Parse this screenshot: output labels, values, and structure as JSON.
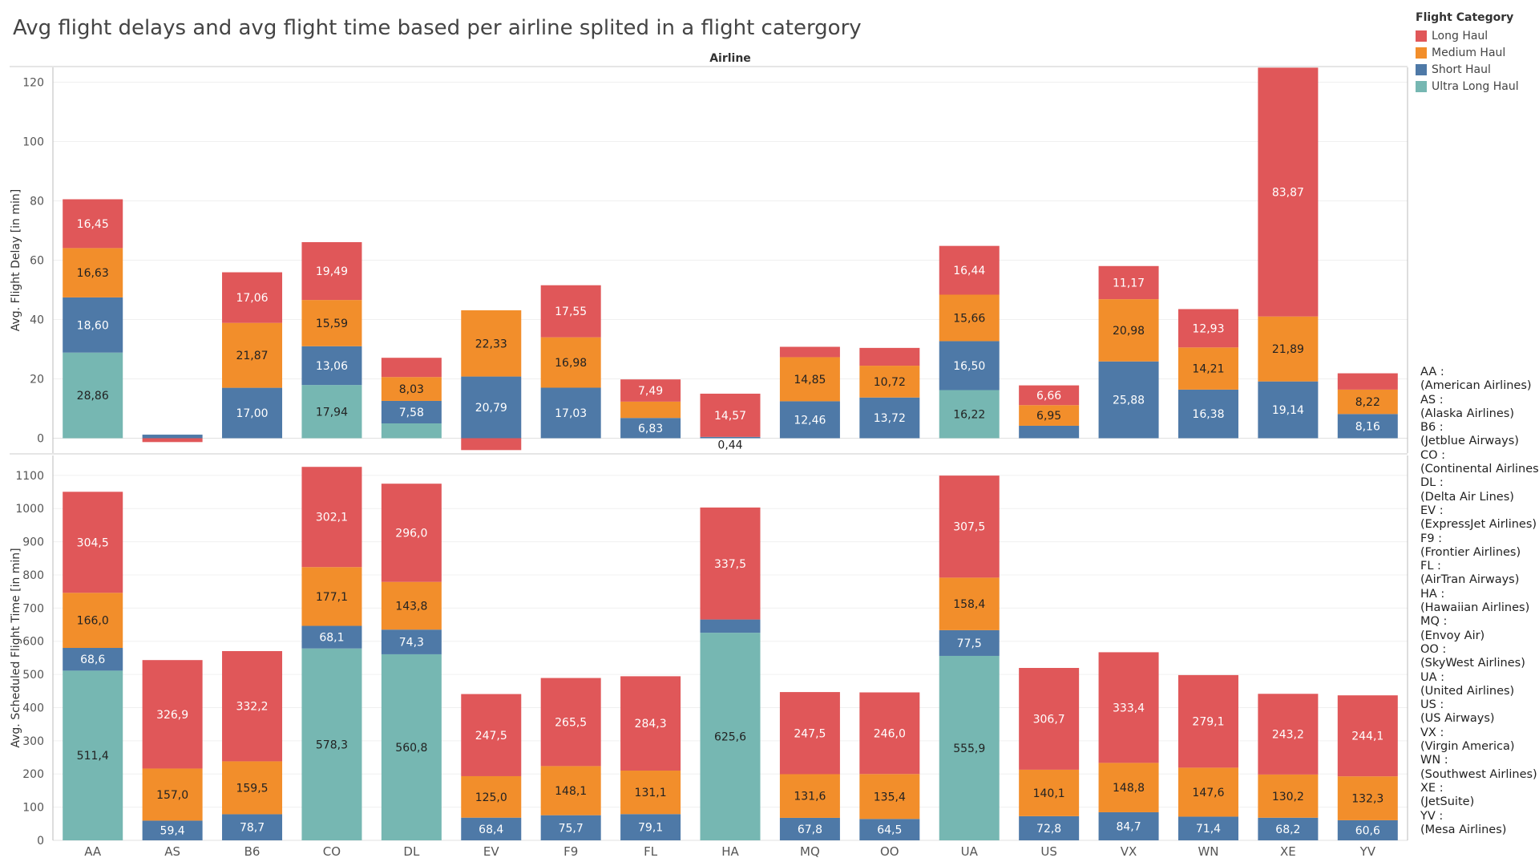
{
  "title": "Avg flight delays and avg flight time based per airline splited in a flight catergory",
  "legend": {
    "title": "Flight Category",
    "items": [
      {
        "label": "Long Haul",
        "color": "#e05759"
      },
      {
        "label": "Medium Haul",
        "color": "#f28e2b"
      },
      {
        "label": "Short Haul",
        "color": "#4e79a7"
      },
      {
        "label": "Ultra Long Haul",
        "color": "#76b7b2"
      }
    ]
  },
  "airline_list": [
    {
      "code": "AA :",
      "name": "(American Airlines)"
    },
    {
      "code": "AS :",
      "name": "(Alaska Airlines)"
    },
    {
      "code": "B6 :",
      "name": "(Jetblue Airways)"
    },
    {
      "code": "CO :",
      "name": "(Continental Airlines)"
    },
    {
      "code": "DL :",
      "name": "(Delta Air Lines)"
    },
    {
      "code": "EV :",
      "name": "(ExpressJet Airlines)"
    },
    {
      "code": "F9 :",
      "name": "(Frontier Airlines)"
    },
    {
      "code": "FL :",
      "name": "(AirTran Airways)"
    },
    {
      "code": "HA :",
      "name": "(Hawaiian Airlines)"
    },
    {
      "code": "MQ :",
      "name": "(Envoy Air)"
    },
    {
      "code": "OO :",
      "name": "(SkyWest Airlines)"
    },
    {
      "code": "UA :",
      "name": "(United Airlines)"
    },
    {
      "code": "US :",
      "name": "(US Airways)"
    },
    {
      "code": "VX :",
      "name": "(Virgin America)"
    },
    {
      "code": "WN :",
      "name": "(Southwest Airlines)"
    },
    {
      "code": "XE :",
      "name": "(JetSuite)"
    },
    {
      "code": "YV :",
      "name": "(Mesa Airlines)"
    }
  ],
  "chart_data": {
    "type": "bar",
    "stacked": true,
    "header_label": "Airline",
    "categories": [
      "AA",
      "AS",
      "B6",
      "CO",
      "DL",
      "EV",
      "F9",
      "FL",
      "HA",
      "MQ",
      "OO",
      "UA",
      "US",
      "VX",
      "WN",
      "XE",
      "YV"
    ],
    "stack_order": [
      "Ultra Long Haul",
      "Short Haul",
      "Medium Haul",
      "Long Haul"
    ],
    "panels": [
      {
        "ylabel": "Avg. Flight Delay [in min]",
        "ylim": [
          -5,
          125
        ],
        "yticks": [
          0,
          20,
          40,
          60,
          80,
          100,
          120
        ],
        "series": [
          {
            "name": "Ultra Long Haul",
            "values": [
              28.86,
              null,
              null,
              17.94,
              5.0,
              null,
              null,
              null,
              null,
              null,
              null,
              16.22,
              null,
              null,
              null,
              null,
              null
            ],
            "labels": [
              "28,86",
              "",
              "",
              "17,94",
              "",
              "",
              "",
              "",
              "",
              "",
              "",
              "16,22",
              "",
              "",
              "",
              "",
              ""
            ]
          },
          {
            "name": "Short Haul",
            "values": [
              18.6,
              1.2,
              17.0,
              13.06,
              7.58,
              20.79,
              17.03,
              6.83,
              0.44,
              12.46,
              13.72,
              16.5,
              4.2,
              25.88,
              16.38,
              19.14,
              8.16
            ],
            "labels": [
              "18,60",
              "",
              "17,00",
              "13,06",
              "7,58",
              "20,79",
              "17,03",
              "6,83",
              "0,44",
              "12,46",
              "13,72",
              "16,50",
              "",
              "25,88",
              "16,38",
              "19,14",
              "8,16"
            ]
          },
          {
            "name": "Medium Haul",
            "values": [
              16.63,
              null,
              21.87,
              15.59,
              8.03,
              22.33,
              16.98,
              5.5,
              null,
              14.85,
              10.72,
              15.66,
              6.95,
              20.98,
              14.21,
              21.89,
              8.22
            ],
            "labels": [
              "16,63",
              "",
              "21,87",
              "15,59",
              "8,03",
              "22,33",
              "16,98",
              "",
              "",
              "14,85",
              "10,72",
              "15,66",
              "6,95",
              "20,98",
              "14,21",
              "21,89",
              "8,22"
            ]
          },
          {
            "name": "Long Haul",
            "values": [
              16.45,
              -1.3,
              17.06,
              19.49,
              6.5,
              -4.0,
              17.55,
              7.49,
              14.57,
              3.5,
              6.0,
              16.44,
              6.66,
              11.17,
              12.93,
              83.87,
              5.5
            ],
            "labels": [
              "16,45",
              "",
              "17,06",
              "19,49",
              "",
              "",
              "17,55",
              "7,49",
              "14,57",
              "",
              "",
              "16,44",
              "6,66",
              "11,17",
              "12,93",
              "83,87",
              ""
            ]
          }
        ]
      },
      {
        "ylabel": "Avg. Scheduled Flight Time [in min]",
        "ylim": [
          0,
          1160
        ],
        "yticks": [
          0,
          100,
          200,
          300,
          400,
          500,
          600,
          700,
          800,
          900,
          1000,
          1100
        ],
        "series": [
          {
            "name": "Ultra Long Haul",
            "values": [
              511.4,
              null,
              null,
              578.3,
              560.8,
              null,
              null,
              null,
              625.6,
              null,
              null,
              555.9,
              null,
              null,
              null,
              null,
              null
            ],
            "labels": [
              "511,4",
              "",
              "",
              "578,3",
              "560,8",
              "",
              "",
              "",
              "625,6",
              "",
              "",
              "555,9",
              "",
              "",
              "",
              "",
              ""
            ]
          },
          {
            "name": "Short Haul",
            "values": [
              68.6,
              59.4,
              78.7,
              68.1,
              74.3,
              68.4,
              75.7,
              79.1,
              40.0,
              67.8,
              64.5,
              77.5,
              72.8,
              84.7,
              71.4,
              68.2,
              60.6
            ],
            "labels": [
              "68,6",
              "59,4",
              "78,7",
              "68,1",
              "74,3",
              "68,4",
              "75,7",
              "79,1",
              "",
              "67,8",
              "64,5",
              "77,5",
              "72,8",
              "84,7",
              "71,4",
              "68,2",
              "60,6"
            ]
          },
          {
            "name": "Medium Haul",
            "values": [
              166.0,
              157.0,
              159.5,
              177.1,
              143.8,
              125.0,
              148.1,
              131.1,
              null,
              131.6,
              135.4,
              158.4,
              140.1,
              148.8,
              147.6,
              130.2,
              132.3
            ],
            "labels": [
              "166,0",
              "157,0",
              "159,5",
              "177,1",
              "143,8",
              "125,0",
              "148,1",
              "131,1",
              "",
              "131,6",
              "135,4",
              "158,4",
              "140,1",
              "148,8",
              "147,6",
              "130,2",
              "132,3"
            ]
          },
          {
            "name": "Long Haul",
            "values": [
              304.5,
              326.9,
              332.2,
              302.1,
              296.0,
              247.5,
              265.5,
              284.3,
              337.5,
              247.5,
              246.0,
              307.5,
              306.7,
              333.4,
              279.1,
              243.2,
              244.1
            ],
            "labels": [
              "304,5",
              "326,9",
              "332,2",
              "302,1",
              "296,0",
              "247,5",
              "265,5",
              "284,3",
              "337,5",
              "247,5",
              "246,0",
              "307,5",
              "306,7",
              "333,4",
              "279,1",
              "243,2",
              "244,1"
            ]
          }
        ]
      }
    ]
  }
}
